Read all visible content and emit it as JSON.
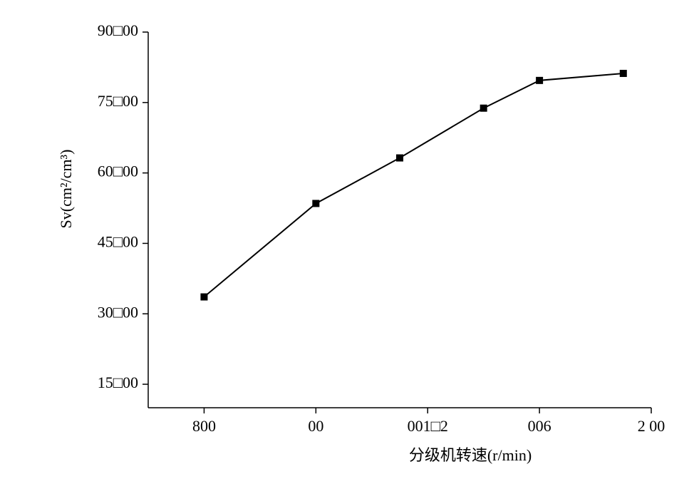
{
  "chart_data": {
    "type": "line",
    "x_label": "分级机转速(r/min)",
    "y_label": "Sv(cm²/cm³)",
    "x": [
      800,
      1000,
      1150,
      1300,
      1400,
      1550
    ],
    "series": [
      {
        "color": "#000000",
        "values": [
          3360,
          5350,
          6320,
          7380,
          7970,
          8120
        ]
      }
    ],
    "xlim": [
      700,
      1600
    ],
    "xticks": [
      {
        "value": 800,
        "label": "800"
      },
      {
        "value": 1000,
        "label": "00"
      },
      {
        "value": 1200,
        "label": "001□2"
      },
      {
        "value": 1400,
        "label": "006"
      },
      {
        "value": 1600,
        "label": "2 00"
      }
    ],
    "ylim": [
      1000,
      9000
    ],
    "yticks": [
      {
        "value": 1500,
        "label": "15□00"
      },
      {
        "value": 3000,
        "label": "30□00"
      },
      {
        "value": 4500,
        "label": "45□00"
      },
      {
        "value": 6000,
        "label": "60□00"
      },
      {
        "value": 7500,
        "label": "75□00"
      },
      {
        "value": 9000,
        "label": "90□00"
      }
    ],
    "marker": "square"
  }
}
